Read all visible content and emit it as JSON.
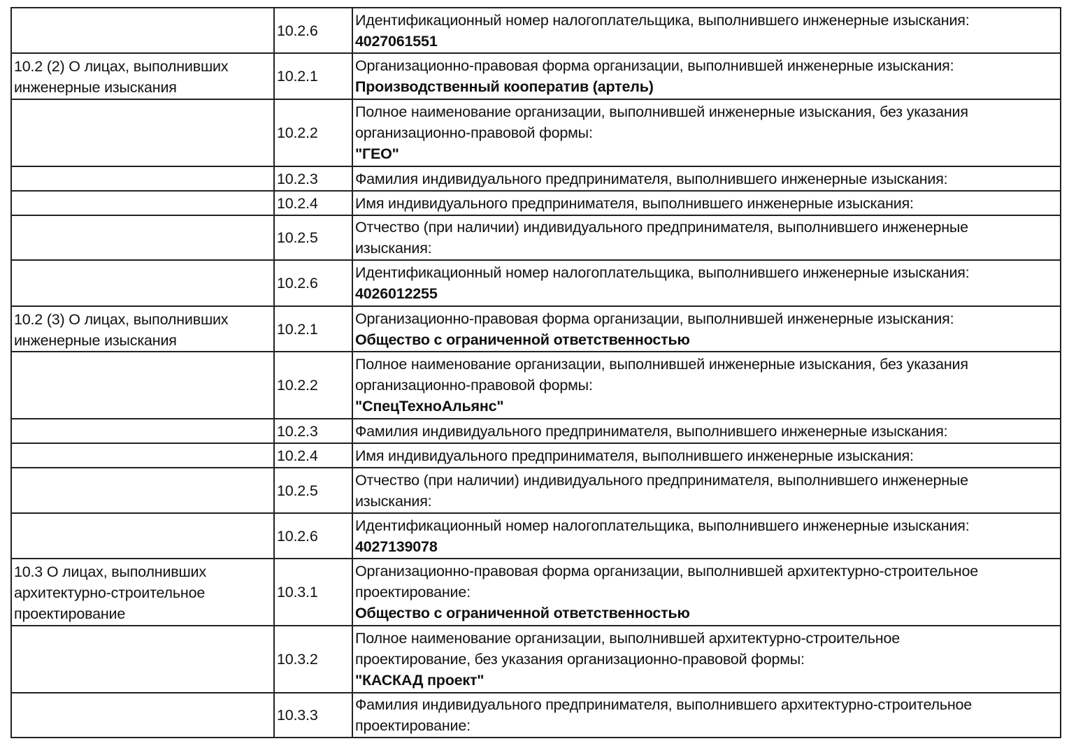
{
  "rows": [
    {
      "section": [],
      "code": "10.2.6",
      "label": [
        "Идентификационный номер налогоплательщика, выполнившего инженерные изыскания:"
      ],
      "value": "4027061551"
    },
    {
      "section": [
        "10.2 (2) О лицах, выполнивших",
        "инженерные изыскания"
      ],
      "code": "10.2.1",
      "label": [
        "Организационно-правовая форма организации, выполнившей инженерные изыскания:"
      ],
      "value": "Производственный кооператив (артель)"
    },
    {
      "section": [],
      "code": "10.2.2",
      "label": [
        "Полное наименование организации, выполнившей инженерные изыскания, без указания",
        "организационно-правовой формы:"
      ],
      "value": "\"ГЕО\""
    },
    {
      "section": [],
      "code": "10.2.3",
      "label": [
        "Фамилия индивидуального предпринимателя, выполнившего инженерные изыскания:"
      ],
      "value": ""
    },
    {
      "section": [],
      "code": "10.2.4",
      "label": [
        "Имя индивидуального предпринимателя, выполнившего инженерные изыскания:"
      ],
      "value": ""
    },
    {
      "section": [],
      "code": "10.2.5",
      "label": [
        "Отчество (при наличии) индивидуального предпринимателя, выполнившего инженерные",
        "изыскания:"
      ],
      "value": ""
    },
    {
      "section": [],
      "code": "10.2.6",
      "label": [
        "Идентификационный номер налогоплательщика, выполнившего инженерные изыскания:"
      ],
      "value": "4026012255"
    },
    {
      "section": [
        "10.2 (3) О лицах, выполнивших",
        "инженерные изыскания"
      ],
      "code": "10.2.1",
      "label": [
        "Организационно-правовая форма организации, выполнившей инженерные изыскания:"
      ],
      "value": "Общество с ограниченной ответственностью"
    },
    {
      "section": [],
      "code": "10.2.2",
      "label": [
        "Полное наименование организации, выполнившей инженерные изыскания, без указания",
        "организационно-правовой формы:"
      ],
      "value": "\"СпецТехноАльянс\""
    },
    {
      "section": [],
      "code": "10.2.3",
      "label": [
        "Фамилия индивидуального предпринимателя, выполнившего инженерные изыскания:"
      ],
      "value": ""
    },
    {
      "section": [],
      "code": "10.2.4",
      "label": [
        "Имя индивидуального предпринимателя, выполнившего инженерные изыскания:"
      ],
      "value": ""
    },
    {
      "section": [],
      "code": "10.2.5",
      "label": [
        "Отчество (при наличии) индивидуального предпринимателя, выполнившего инженерные",
        "изыскания:"
      ],
      "value": ""
    },
    {
      "section": [],
      "code": "10.2.6",
      "label": [
        "Идентификационный номер налогоплательщика, выполнившего инженерные изыскания:"
      ],
      "value": "4027139078"
    },
    {
      "section": [
        "10.3 О лицах, выполнивших",
        "архитектурно-строительное",
        "проектирование"
      ],
      "code": "10.3.1",
      "label": [
        "Организационно-правовая форма организации, выполнившей архитектурно-строительное",
        "проектирование:"
      ],
      "value": "Общество с ограниченной ответственностью"
    },
    {
      "section": [],
      "code": "10.3.2",
      "label": [
        "Полное наименование организации, выполнившей архитектурно-строительное",
        "проектирование, без указания организационно-правовой формы:"
      ],
      "value": "\"КАСКАД проект\""
    },
    {
      "section": [],
      "code": "10.3.3",
      "label": [
        "Фамилия индивидуального предпринимателя, выполнившего архитектурно-строительное",
        "проектирование:"
      ],
      "value": ""
    }
  ]
}
